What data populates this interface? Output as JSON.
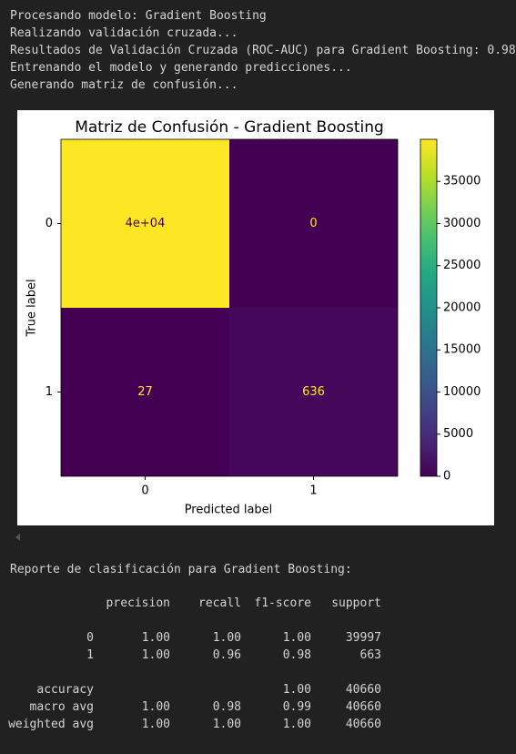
{
  "log": [
    "Procesando modelo: Gradient Boosting",
    "Realizando validación cruzada...",
    "Resultados de Validación Cruzada (ROC-AUC) para Gradient Boosting: 0.98",
    "Entrenando el modelo y generando predicciones...",
    "Generando matriz de confusión..."
  ],
  "chart_data": {
    "type": "heatmap",
    "title": "Matriz de Confusión - Gradient Boosting",
    "xlabel": "Predicted label",
    "ylabel": "True label",
    "x": [
      "0",
      "1"
    ],
    "y": [
      "0",
      "1"
    ],
    "values": [
      [
        39997,
        0
      ],
      [
        27,
        636
      ]
    ],
    "value_labels": [
      [
        "4e+04",
        "0"
      ],
      [
        "27",
        "636"
      ]
    ],
    "colormap": "viridis",
    "clim": [
      0,
      39997
    ],
    "cticks": [
      0,
      5000,
      10000,
      15000,
      20000,
      25000,
      30000,
      35000
    ]
  },
  "report": {
    "title": "Reporte de clasificación para Gradient Boosting:",
    "columns": [
      "precision",
      "recall",
      "f1-score",
      "support"
    ],
    "rows": [
      {
        "label": "0",
        "precision": "1.00",
        "recall": "1.00",
        "f1-score": "1.00",
        "support": "39997"
      },
      {
        "label": "1",
        "precision": "1.00",
        "recall": "0.96",
        "f1-score": "0.98",
        "support": "663"
      },
      {
        "label": "accuracy",
        "f1-score": "1.00",
        "support": "40660"
      },
      {
        "label": "macro avg",
        "precision": "1.00",
        "recall": "0.98",
        "f1-score": "0.99",
        "support": "40660"
      },
      {
        "label": "weighted avg",
        "precision": "1.00",
        "recall": "1.00",
        "f1-score": "1.00",
        "support": "40660"
      }
    ]
  }
}
